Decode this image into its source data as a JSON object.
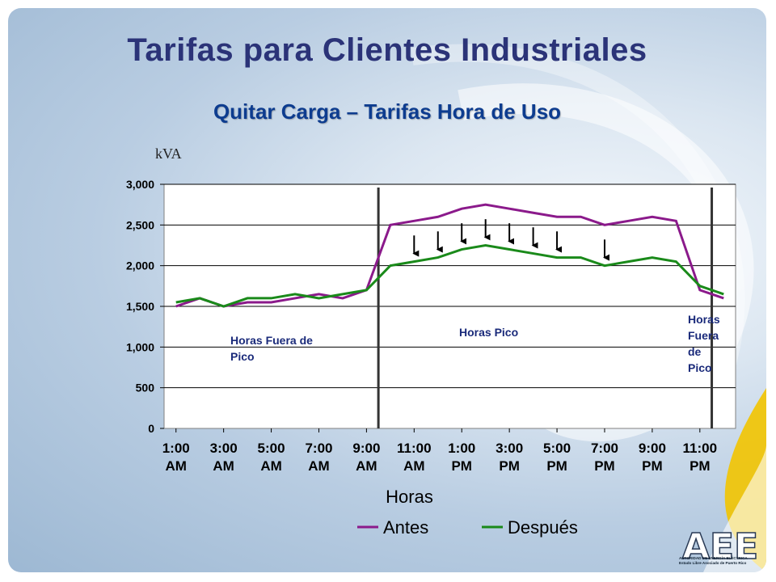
{
  "slide": {
    "title": "Tarifas para Clientes Industriales",
    "subtitle": "Quitar Carga – Tarifas Hora de Uso",
    "unit_label": "kVA"
  },
  "logo": {
    "mark": "AEE",
    "line1": "AUTORIDAD DE ENERGÍA ELÉCTRICA",
    "line2": "Estado Libre Asociado de Puerto Rico"
  },
  "chart_data": {
    "type": "line",
    "xlabel": "Horas",
    "ylabel": "kVA",
    "ylim": [
      0,
      3000
    ],
    "yticks": [
      0,
      500,
      1000,
      1500,
      2000,
      2500,
      3000
    ],
    "ytick_labels": [
      "0",
      "500",
      "1,000",
      "1,500",
      "2,000",
      "2,500",
      "3,000"
    ],
    "x_tick_labels": [
      [
        "1:00",
        "AM"
      ],
      [
        "3:00",
        "AM"
      ],
      [
        "5:00",
        "AM"
      ],
      [
        "7:00",
        "AM"
      ],
      [
        "9:00",
        "AM"
      ],
      [
        "11:00",
        "AM"
      ],
      [
        "1:00",
        "PM"
      ],
      [
        "3:00",
        "PM"
      ],
      [
        "5:00",
        "PM"
      ],
      [
        "7:00",
        "PM"
      ],
      [
        "9:00",
        "PM"
      ],
      [
        "11:00",
        "PM"
      ]
    ],
    "x_hours": [
      1,
      2,
      3,
      4,
      5,
      6,
      7,
      8,
      9,
      10,
      11,
      12,
      13,
      14,
      15,
      16,
      17,
      18,
      19,
      20,
      21,
      22,
      23,
      24
    ],
    "grid": true,
    "legend": "bottom",
    "series": [
      {
        "name": "Antes",
        "color": "#8b1a8b",
        "values": [
          1500,
          1600,
          1500,
          1550,
          1550,
          1600,
          1650,
          1600,
          1700,
          2500,
          2550,
          2600,
          2700,
          2750,
          2700,
          2650,
          2600,
          2600,
          2500,
          2550,
          2600,
          2550,
          1700,
          1600
        ]
      },
      {
        "name": "Después",
        "color": "#1a8a1a",
        "values": [
          1550,
          1600,
          1500,
          1600,
          1600,
          1650,
          1600,
          1650,
          1700,
          2000,
          2050,
          2100,
          2200,
          2250,
          2200,
          2150,
          2100,
          2100,
          2000,
          2050,
          2100,
          2050,
          1750,
          1650
        ]
      }
    ],
    "periods": [
      {
        "label": "Horas Fuera de Pico",
        "wrap": [
          "Horas Fuera de",
          "Pico"
        ]
      },
      {
        "label": "Horas Pico",
        "wrap": [
          "Horas Pico"
        ]
      },
      {
        "label": "Horas Fuera de Pico",
        "wrap": [
          "Horas",
          "Fuera",
          "de",
          "Pico"
        ]
      }
    ],
    "period_boundaries": [
      9.5,
      23.5
    ],
    "reduction_arrows_at": [
      11,
      12,
      13,
      14,
      15,
      16,
      17,
      19
    ]
  }
}
